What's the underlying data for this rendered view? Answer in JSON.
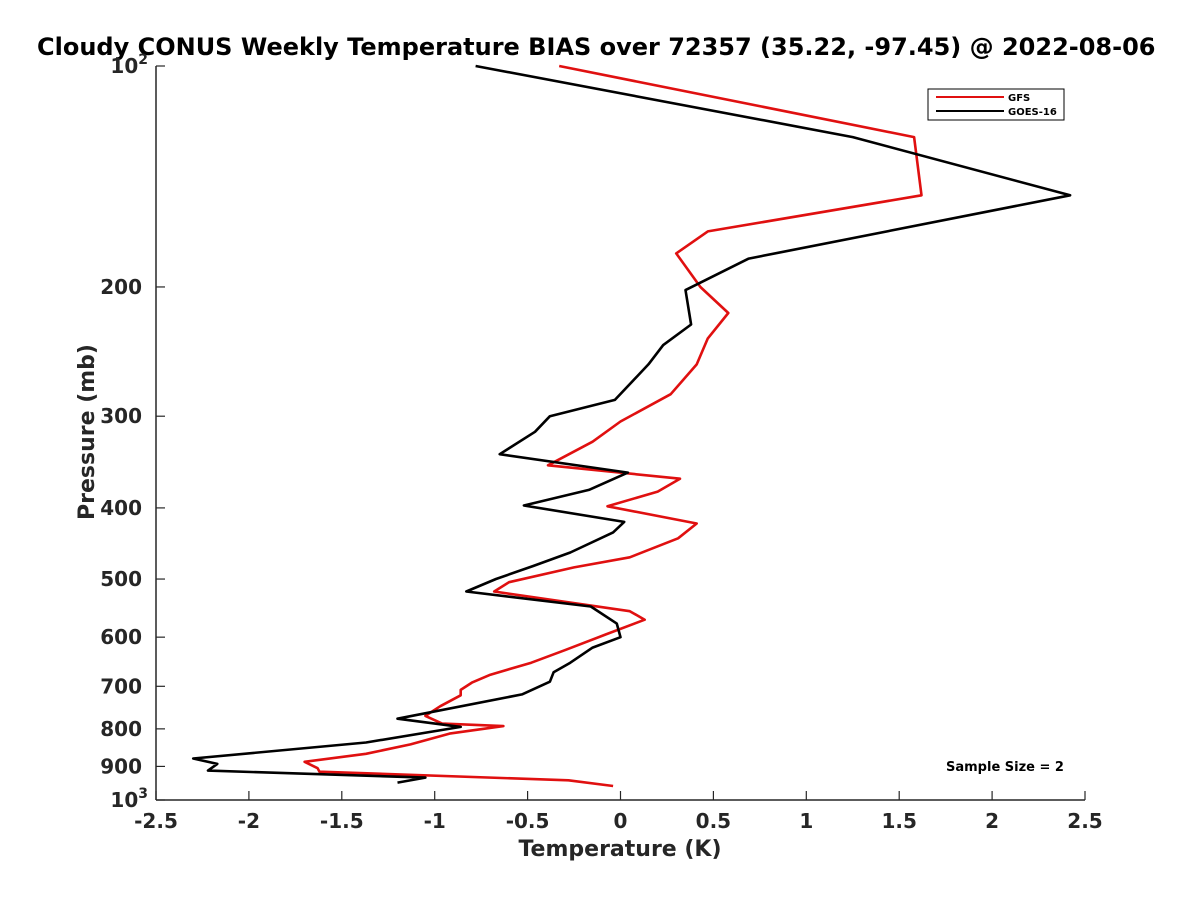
{
  "chart_data": {
    "type": "line",
    "title": "Cloudy CONUS Weekly Temperature BIAS over 72357 (35.22, -97.45) @ 2022-08-06",
    "xlabel": "Temperature (K)",
    "ylabel": "Pressure (mb)",
    "xlim": [
      -2.5,
      2.5
    ],
    "ylim": [
      100,
      1000
    ],
    "y_scale": "log",
    "y_reversed": true,
    "grid": false,
    "legend_position": "top-right",
    "x_ticks": [
      "-2.5",
      "-2",
      "-1.5",
      "-1",
      "-0.5",
      "0",
      "0.5",
      "1",
      "1.5",
      "2",
      "2.5"
    ],
    "y_ticks": [
      {
        "value": 100,
        "base": "10",
        "exp": "2",
        "text": ""
      },
      {
        "value": 200,
        "base": "",
        "exp": "",
        "text": "200"
      },
      {
        "value": 300,
        "base": "",
        "exp": "",
        "text": "300"
      },
      {
        "value": 400,
        "base": "",
        "exp": "",
        "text": "400"
      },
      {
        "value": 500,
        "base": "",
        "exp": "",
        "text": "500"
      },
      {
        "value": 600,
        "base": "",
        "exp": "",
        "text": "600"
      },
      {
        "value": 700,
        "base": "",
        "exp": "",
        "text": "700"
      },
      {
        "value": 800,
        "base": "",
        "exp": "",
        "text": "800"
      },
      {
        "value": 900,
        "base": "",
        "exp": "",
        "text": "900"
      },
      {
        "value": 1000,
        "base": "10",
        "exp": "3",
        "text": ""
      }
    ],
    "series": [
      {
        "name": "GFS",
        "color": "#e01010",
        "points": [
          [
            -0.33,
            100
          ],
          [
            1.58,
            125
          ],
          [
            1.62,
            150
          ],
          [
            0.47,
            168
          ],
          [
            0.3,
            180
          ],
          [
            0.43,
            200
          ],
          [
            0.58,
            217
          ],
          [
            0.47,
            235
          ],
          [
            0.41,
            255
          ],
          [
            0.27,
            280
          ],
          [
            0.0,
            305
          ],
          [
            -0.15,
            325
          ],
          [
            -0.39,
            350
          ],
          [
            0.32,
            365
          ],
          [
            0.2,
            380
          ],
          [
            -0.07,
            398
          ],
          [
            0.41,
            420
          ],
          [
            0.31,
            440
          ],
          [
            0.05,
            467
          ],
          [
            -0.25,
            482
          ],
          [
            -0.6,
            505
          ],
          [
            -0.68,
            520
          ],
          [
            0.05,
            553
          ],
          [
            0.13,
            568
          ],
          [
            -0.08,
            595
          ],
          [
            -0.3,
            625
          ],
          [
            -0.48,
            650
          ],
          [
            -0.7,
            675
          ],
          [
            -0.8,
            692
          ],
          [
            -0.86,
            708
          ],
          [
            -0.86,
            720
          ],
          [
            -0.97,
            745
          ],
          [
            -1.05,
            768
          ],
          [
            -0.96,
            787
          ],
          [
            -0.63,
            793
          ],
          [
            -0.92,
            812
          ],
          [
            -1.13,
            840
          ],
          [
            -1.37,
            865
          ],
          [
            -1.7,
            887
          ],
          [
            -1.63,
            905
          ],
          [
            -1.62,
            915
          ],
          [
            -0.28,
            940
          ],
          [
            -0.04,
            957
          ]
        ]
      },
      {
        "name": "GOES-16",
        "color": "#000000",
        "points": [
          [
            -0.78,
            100
          ],
          [
            1.25,
            125
          ],
          [
            2.42,
            150
          ],
          [
            0.69,
            183
          ],
          [
            0.35,
            202
          ],
          [
            0.38,
            225
          ],
          [
            0.23,
            240
          ],
          [
            0.15,
            255
          ],
          [
            -0.03,
            285
          ],
          [
            -0.38,
            300
          ],
          [
            -0.46,
            315
          ],
          [
            -0.65,
            338
          ],
          [
            0.04,
            358
          ],
          [
            -0.17,
            378
          ],
          [
            -0.52,
            397
          ],
          [
            0.02,
            418
          ],
          [
            -0.04,
            432
          ],
          [
            -0.27,
            460
          ],
          [
            -0.47,
            480
          ],
          [
            -0.67,
            500
          ],
          [
            -0.83,
            520
          ],
          [
            -0.16,
            545
          ],
          [
            -0.02,
            575
          ],
          [
            0.0,
            600
          ],
          [
            -0.15,
            620
          ],
          [
            -0.27,
            650
          ],
          [
            -0.36,
            670
          ],
          [
            -0.38,
            690
          ],
          [
            -0.53,
            718
          ],
          [
            -1.2,
            775
          ],
          [
            -0.86,
            795
          ],
          [
            -1.37,
            835
          ],
          [
            -2.3,
            878
          ],
          [
            -2.17,
            893
          ],
          [
            -2.22,
            912
          ],
          [
            -1.05,
            932
          ],
          [
            -1.2,
            947
          ]
        ]
      }
    ],
    "annotation": "Sample Size = 2"
  }
}
